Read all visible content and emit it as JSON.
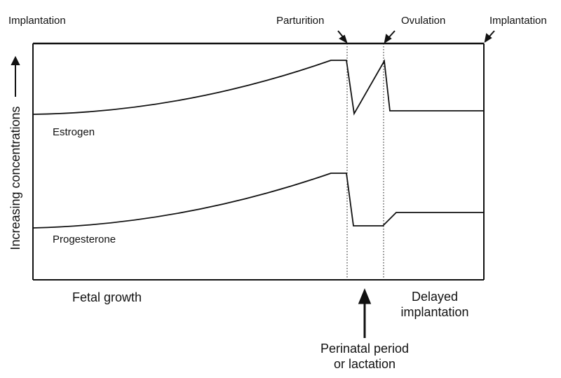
{
  "event_labels": {
    "implantation_start": "Implantation",
    "parturition": "Parturition",
    "ovulation": "Ovulation",
    "implantation_end": "Implantation"
  },
  "y_axis_label": "Increasing concentrations",
  "series_labels": {
    "estrogen": "Estrogen",
    "progesterone": "Progesterone"
  },
  "phase_labels": {
    "fetal_growth": "Fetal growth",
    "delayed_implantation_line1": "Delayed",
    "delayed_implantation_line2": "implantation",
    "perinatal_line1": "Perinatal period",
    "perinatal_line2": "or lactation"
  },
  "colors": {
    "line": "#111111",
    "background": "#ffffff"
  }
}
